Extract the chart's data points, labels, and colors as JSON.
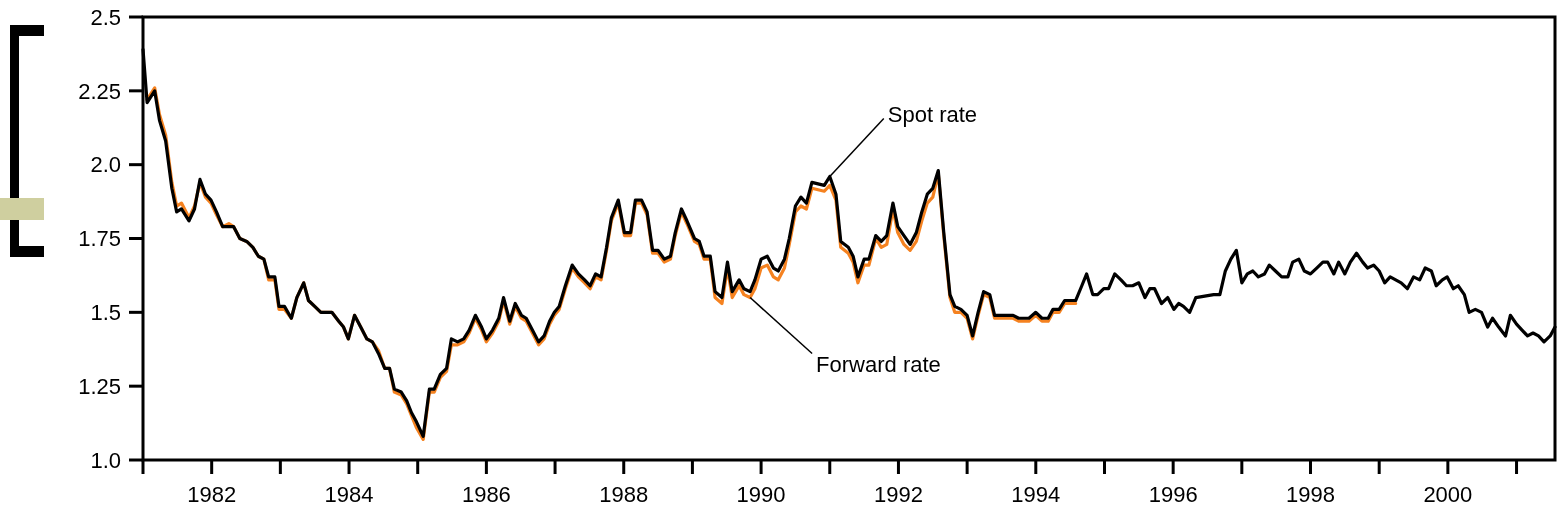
{
  "chart_data": {
    "type": "line",
    "xlim": [
      1981,
      2001.56
    ],
    "ylim": [
      1,
      2.5
    ],
    "xticks": [
      {
        "value": 1981,
        "label": null
      },
      1982,
      {
        "value": 1983,
        "label": null
      },
      1984,
      {
        "value": 1985,
        "label": null
      },
      1986,
      {
        "value": 1987,
        "label": null
      },
      1988,
      {
        "value": 1989,
        "label": null
      },
      1990,
      {
        "value": 1991,
        "label": null
      },
      1992,
      {
        "value": 1993,
        "label": null
      },
      1994,
      {
        "value": 1995,
        "label": null
      },
      1996,
      {
        "value": 1997,
        "label": null
      },
      1998,
      {
        "value": 1999,
        "label": null
      },
      2000,
      {
        "value": 2001,
        "label": null
      }
    ],
    "yticks": [
      {
        "value": 1,
        "label": "1.0"
      },
      1.25,
      1.5,
      1.75,
      {
        "value": 2,
        "label": "2.0"
      },
      2.25,
      2.5
    ],
    "line_style": "solid",
    "annotations": [
      {
        "text": "Spot rate",
        "x": 1991.0,
        "y": 1.96
      },
      {
        "text": "Forward rate",
        "x": 1989.84,
        "y": 1.55
      }
    ],
    "x": [
      1981.0,
      1981.06,
      1981.17,
      1981.24,
      1981.33,
      1981.42,
      1981.49,
      1981.56,
      1981.67,
      1981.75,
      1981.83,
      1981.91,
      1981.99,
      1982.07,
      1982.16,
      1982.25,
      1982.32,
      1982.41,
      1982.51,
      1982.6,
      1982.68,
      1982.76,
      1982.83,
      1982.92,
      1982.98,
      1983.06,
      1983.16,
      1983.24,
      1983.34,
      1983.41,
      1983.5,
      1983.59,
      1983.75,
      1983.85,
      1983.92,
      1983.99,
      1984.08,
      1984.17,
      1984.26,
      1984.34,
      1984.43,
      1984.52,
      1984.59,
      1984.66,
      1984.76,
      1984.84,
      1984.91,
      1984.98,
      1985.08,
      1985.17,
      1985.24,
      1985.33,
      1985.42,
      1985.49,
      1985.58,
      1985.67,
      1985.75,
      1985.84,
      1985.93,
      1986.0,
      1986.09,
      1986.18,
      1986.25,
      1986.34,
      1986.42,
      1986.51,
      1986.58,
      1986.67,
      1986.76,
      1986.84,
      1986.92,
      1986.99,
      1987.06,
      1987.15,
      1987.25,
      1987.34,
      1987.43,
      1987.51,
      1987.59,
      1987.67,
      1987.75,
      1987.82,
      1987.92,
      1988.01,
      1988.1,
      1988.17,
      1988.26,
      1988.34,
      1988.42,
      1988.5,
      1988.59,
      1988.68,
      1988.75,
      1988.84,
      1988.92,
      1989.03,
      1989.1,
      1989.17,
      1989.26,
      1989.33,
      1989.43,
      1989.51,
      1989.58,
      1989.68,
      1989.75,
      1989.84,
      1989.91,
      1990.0,
      1990.09,
      1990.18,
      1990.25,
      1990.34,
      1990.41,
      1990.5,
      1990.58,
      1990.66,
      1990.74,
      1990.92,
      1991.0,
      1991.09,
      1991.16,
      1991.27,
      1991.34,
      1991.41,
      1991.5,
      1991.57,
      1991.67,
      1991.75,
      1991.83,
      1991.92,
      1991.99,
      1992.08,
      1992.17,
      1992.26,
      1992.34,
      1992.42,
      1992.5,
      1992.58,
      1992.66,
      1992.75,
      1992.82,
      1992.91,
      1993.0,
      1993.08,
      1993.16,
      1993.24,
      1993.33,
      1993.4,
      1993.49,
      1993.67,
      1993.75,
      1993.9,
      1994.0,
      1994.09,
      1994.18,
      1994.25,
      1994.34,
      1994.42,
      1994.5,
      1994.58,
      1994.67,
      1994.74,
      1994.83,
      1994.9,
      1994.99,
      1995.06,
      1995.15,
      1995.24,
      1995.32,
      1995.41,
      1995.5,
      1995.59,
      1995.66,
      1995.73,
      1995.83,
      1995.92,
      1996.01,
      1996.08,
      1996.15,
      1996.24,
      1996.33,
      1996.59,
      1996.68,
      1996.76,
      1996.84,
      1996.92,
      1997.0,
      1997.08,
      1997.16,
      1997.24,
      1997.33,
      1997.4,
      1997.49,
      1997.58,
      1997.67,
      1997.74,
      1997.83,
      1997.91,
      1998.0,
      1998.09,
      1998.18,
      1998.25,
      1998.34,
      1998.41,
      1998.5,
      1998.58,
      1998.67,
      1998.76,
      1998.83,
      1998.92,
      1999.0,
      1999.08,
      1999.16,
      1999.32,
      1999.41,
      1999.5,
      1999.59,
      1999.67,
      1999.76,
      1999.83,
      1999.92,
      1999.99,
      2000.08,
      2000.15,
      2000.24,
      2000.31,
      2000.4,
      2000.49,
      2000.58,
      2000.65,
      2000.74,
      2000.84,
      2000.91,
      2001.0,
      2001.08,
      2001.16,
      2001.24,
      2001.32,
      2001.4,
      2001.49,
      2001.56
    ],
    "series": [
      {
        "color": "#f58220",
        "values": [
          null,
          2.22,
          2.26,
          2.17,
          2.1,
          1.94,
          1.86,
          1.87,
          1.82,
          1.86,
          1.94,
          1.89,
          1.87,
          1.83,
          1.79,
          1.8,
          1.79,
          1.75,
          1.74,
          1.72,
          1.69,
          1.68,
          1.61,
          1.61,
          1.51,
          1.51,
          1.48,
          1.55,
          1.6,
          1.54,
          1.52,
          1.5,
          1.5,
          1.47,
          1.45,
          1.41,
          1.49,
          1.45,
          1.41,
          1.4,
          1.37,
          1.31,
          1.31,
          1.23,
          1.22,
          1.19,
          1.15,
          1.11,
          1.07,
          1.23,
          1.23,
          1.28,
          1.3,
          1.39,
          1.39,
          1.4,
          1.43,
          1.48,
          1.44,
          1.4,
          1.43,
          1.47,
          1.54,
          1.46,
          1.52,
          1.48,
          1.47,
          1.43,
          1.39,
          1.41,
          1.46,
          1.49,
          1.51,
          1.58,
          1.65,
          1.62,
          1.6,
          1.58,
          1.62,
          1.61,
          1.71,
          1.81,
          1.87,
          1.76,
          1.76,
          1.87,
          1.87,
          1.83,
          1.7,
          1.7,
          1.67,
          1.68,
          1.76,
          1.84,
          1.8,
          1.74,
          1.73,
          1.68,
          1.68,
          1.55,
          1.53,
          1.65,
          1.55,
          1.59,
          1.56,
          1.55,
          1.58,
          1.65,
          1.66,
          1.62,
          1.61,
          1.65,
          1.73,
          1.84,
          1.86,
          1.85,
          1.92,
          1.91,
          1.93,
          1.88,
          1.72,
          1.7,
          1.67,
          1.6,
          1.66,
          1.66,
          1.75,
          1.72,
          1.73,
          1.85,
          1.77,
          1.73,
          1.71,
          1.74,
          1.81,
          1.87,
          1.89,
          1.97,
          1.76,
          1.55,
          1.5,
          1.5,
          1.48,
          1.41,
          1.49,
          1.56,
          1.55,
          1.48,
          1.48,
          1.48,
          1.47,
          1.47,
          1.49,
          1.47,
          1.47,
          1.5,
          1.5,
          1.53,
          1.53,
          1.53,
          null,
          null,
          null,
          null,
          null,
          null,
          null,
          null,
          null,
          null,
          null,
          null,
          null,
          null,
          null,
          null,
          null,
          null,
          null,
          null,
          null,
          null,
          null,
          null,
          null,
          null,
          null,
          null,
          null,
          null,
          null,
          null,
          null,
          null,
          null,
          null,
          null,
          null,
          null,
          null,
          null,
          null,
          null,
          null,
          null,
          null,
          null,
          null,
          null,
          null,
          null,
          null,
          null,
          null,
          null,
          null,
          null,
          null,
          null,
          null,
          null,
          null,
          null,
          null,
          null,
          null,
          null,
          null,
          null,
          null,
          null,
          null,
          null,
          null,
          null,
          null,
          null,
          null,
          null,
          null,
          null
        ]
      },
      {
        "color": "#000000",
        "values": [
          2.39,
          2.21,
          2.25,
          2.15,
          2.08,
          1.92,
          1.84,
          1.85,
          1.81,
          1.85,
          1.95,
          1.9,
          1.88,
          1.84,
          1.79,
          1.79,
          1.79,
          1.75,
          1.74,
          1.72,
          1.69,
          1.68,
          1.62,
          1.62,
          1.52,
          1.52,
          1.48,
          1.55,
          1.6,
          1.54,
          1.52,
          1.5,
          1.5,
          1.47,
          1.45,
          1.41,
          1.49,
          1.45,
          1.41,
          1.4,
          1.36,
          1.31,
          1.31,
          1.24,
          1.23,
          1.2,
          1.16,
          1.13,
          1.08,
          1.24,
          1.24,
          1.29,
          1.31,
          1.41,
          1.4,
          1.41,
          1.44,
          1.49,
          1.45,
          1.41,
          1.44,
          1.48,
          1.55,
          1.47,
          1.53,
          1.49,
          1.48,
          1.44,
          1.4,
          1.42,
          1.47,
          1.5,
          1.52,
          1.59,
          1.66,
          1.63,
          1.61,
          1.59,
          1.63,
          1.62,
          1.72,
          1.82,
          1.88,
          1.77,
          1.77,
          1.88,
          1.88,
          1.84,
          1.71,
          1.71,
          1.68,
          1.69,
          1.77,
          1.85,
          1.81,
          1.75,
          1.74,
          1.69,
          1.69,
          1.57,
          1.55,
          1.67,
          1.57,
          1.61,
          1.58,
          1.57,
          1.61,
          1.68,
          1.69,
          1.65,
          1.64,
          1.68,
          1.75,
          1.86,
          1.89,
          1.87,
          1.94,
          1.93,
          1.96,
          1.9,
          1.74,
          1.72,
          1.69,
          1.62,
          1.68,
          1.68,
          1.76,
          1.74,
          1.76,
          1.87,
          1.79,
          1.76,
          1.73,
          1.77,
          1.84,
          1.9,
          1.92,
          1.98,
          1.77,
          1.56,
          1.52,
          1.51,
          1.49,
          1.42,
          1.5,
          1.57,
          1.56,
          1.49,
          1.49,
          1.49,
          1.48,
          1.48,
          1.5,
          1.48,
          1.48,
          1.51,
          1.51,
          1.54,
          1.54,
          1.54,
          1.59,
          1.63,
          1.56,
          1.56,
          1.58,
          1.58,
          1.63,
          1.61,
          1.59,
          1.59,
          1.6,
          1.55,
          1.58,
          1.58,
          1.53,
          1.55,
          1.51,
          1.53,
          1.52,
          1.5,
          1.55,
          1.56,
          1.56,
          1.64,
          1.68,
          1.71,
          1.6,
          1.63,
          1.64,
          1.62,
          1.63,
          1.66,
          1.64,
          1.62,
          1.62,
          1.67,
          1.68,
          1.64,
          1.63,
          1.65,
          1.67,
          1.67,
          1.63,
          1.67,
          1.63,
          1.67,
          1.7,
          1.67,
          1.65,
          1.66,
          1.64,
          1.6,
          1.62,
          1.6,
          1.58,
          1.62,
          1.61,
          1.65,
          1.64,
          1.59,
          1.61,
          1.62,
          1.58,
          1.59,
          1.56,
          1.5,
          1.51,
          1.5,
          1.45,
          1.48,
          1.45,
          1.42,
          1.49,
          1.46,
          1.44,
          1.42,
          1.43,
          1.42,
          1.4,
          1.42,
          1.45
        ]
      }
    ]
  }
}
